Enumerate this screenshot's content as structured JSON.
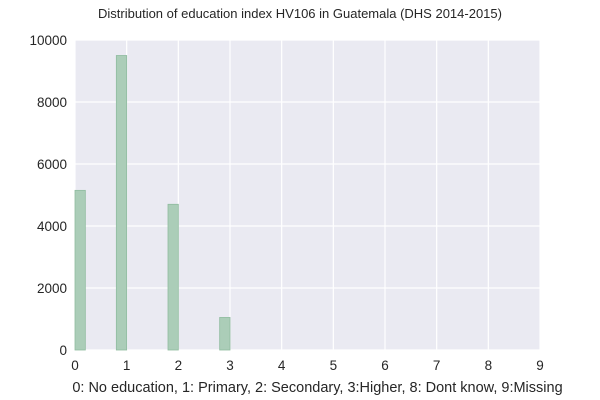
{
  "chart_data": {
    "type": "bar",
    "title": "Distribution of education index HV106 in Guatemala (DHS 2014-2015)",
    "xlabel": "0: No education, 1: Primary, 2: Secondary, 3:Higher, 8: Dont know, 9:Missing",
    "ylabel": "",
    "xlim": [
      0,
      9
    ],
    "ylim": [
      0,
      10000
    ],
    "xticks": [
      "0",
      "1",
      "2",
      "3",
      "4",
      "5",
      "6",
      "7",
      "8",
      "9"
    ],
    "yticks": [
      "0",
      "2000",
      "4000",
      "6000",
      "8000",
      "10000"
    ],
    "bin_width": 0.2,
    "bins": [
      {
        "x_start": 0.0,
        "value": 5150
      },
      {
        "x_start": 0.8,
        "value": 9500
      },
      {
        "x_start": 1.8,
        "value": 4700
      },
      {
        "x_start": 2.8,
        "value": 1050
      }
    ],
    "grid": true,
    "colors": {
      "bar_fill": "#abcdb8",
      "bar_edge": "#8fbb9f",
      "plot_background": "#eaeaf2",
      "grid": "#ffffff"
    }
  }
}
